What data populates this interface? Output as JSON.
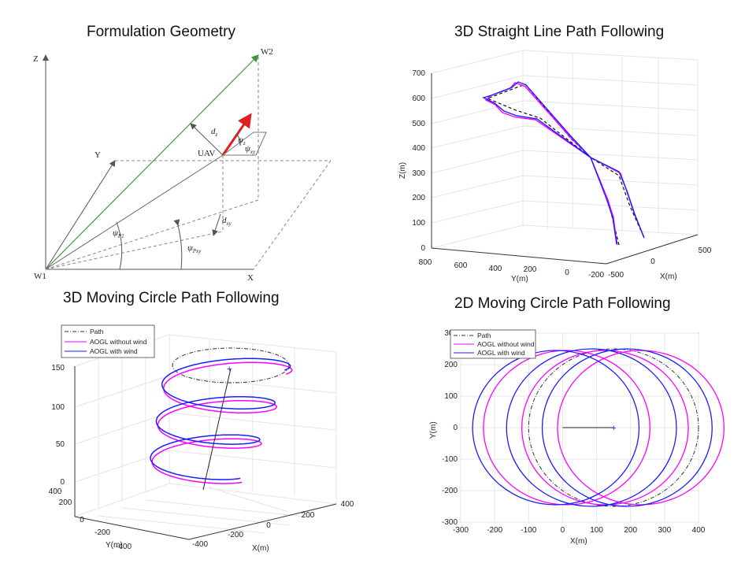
{
  "titles": {
    "geometry": "Formulation Geometry",
    "straight": "3D Straight Line Path Following",
    "circle3d": "3D Moving Circle Path Following",
    "circle2d": "2D Moving Circle Path Following"
  },
  "geometry": {
    "labels": {
      "z": "Z",
      "w2": "W2",
      "y": "Y",
      "uav": "UAV",
      "dz": "d",
      "dz_sub": "z",
      "vz": "ψ",
      "vz_sub": "z",
      "vxy": "ψ",
      "vxy_sub": "xy",
      "dxy": "d",
      "dxy_sub": "xy",
      "psi_p1": "ψ",
      "psi_p1_sub": "P1",
      "psi_pxy": "ψ",
      "psi_pxy_sub": "Pxy",
      "w1": "W1",
      "x": "X"
    },
    "colors": {
      "uav": "#e02020",
      "path": "#3a9a3a"
    }
  },
  "colors": {
    "path": "#333333",
    "no_wind": "#ff00ff",
    "wind": "#1c1cff"
  },
  "legend": {
    "path": "Path",
    "no_wind": "AOGL without wind",
    "wind": "AOGL with wind"
  },
  "chart_data": [
    {
      "type": "line",
      "title": "3D Straight Line Path Following",
      "xlabel": "X(m)",
      "ylabel": "Y(m)",
      "zlabel": "Z(m)",
      "zticks": [
        "0",
        "100",
        "200",
        "300",
        "400",
        "500",
        "600",
        "700"
      ],
      "yticks": [
        "800",
        "600",
        "400",
        "200",
        "0",
        "-200"
      ],
      "xticks": [
        "-500",
        "0",
        "500"
      ],
      "zlim": [
        0,
        700
      ],
      "grid": true
    },
    {
      "type": "line",
      "title": "3D Moving Circle Path Following",
      "xlabel": "X(m)",
      "ylabel": "Y(m)",
      "zticks": [
        "0",
        "50",
        "100",
        "150"
      ],
      "yticks": [
        "400",
        "200",
        "0",
        "-200",
        "-400"
      ],
      "xticks": [
        "-400",
        "-200",
        "0",
        "200",
        "400"
      ],
      "zlim": [
        0,
        150
      ],
      "legend_position": "top-left",
      "series": [
        {
          "name": "Path"
        },
        {
          "name": "AOGL without wind"
        },
        {
          "name": "AOGL with wind"
        }
      ],
      "grid": true
    },
    {
      "type": "line",
      "title": "2D Moving Circle Path Following",
      "xlabel": "X(m)",
      "ylabel": "Y(m)",
      "xlim": [
        -300,
        400
      ],
      "ylim": [
        -300,
        300
      ],
      "xticks": [
        "-300",
        "-200",
        "-100",
        "0",
        "100",
        "200",
        "300",
        "400"
      ],
      "yticks": [
        "-300",
        "-200",
        "-100",
        "0",
        "100",
        "200",
        "300"
      ],
      "legend_position": "top-left",
      "series": [
        {
          "name": "Path",
          "center": [
            150,
            0
          ],
          "radius": 250
        },
        {
          "name": "AOGL without wind",
          "loops": [
            [
              12,
              0,
              245
            ],
            [
              125,
              0,
              245
            ],
            [
              230,
              0,
              245
            ]
          ]
        },
        {
          "name": "AOGL with wind",
          "loops": [
            [
              -20,
              0,
              245
            ],
            [
              85,
              0,
              250
            ],
            [
              190,
              0,
              250
            ]
          ]
        }
      ],
      "marker": {
        "x": 150,
        "y": 0
      },
      "grid": true
    }
  ]
}
